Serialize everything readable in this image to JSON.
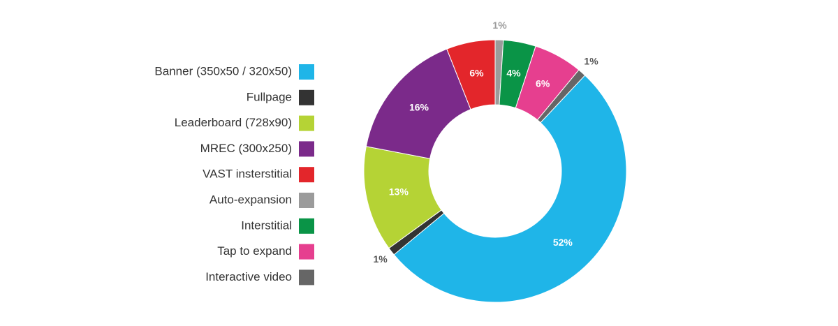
{
  "chart_data": {
    "type": "donut",
    "categories": [
      "Banner (350x50 / 320x50)",
      "Fullpage",
      "Leaderboard (728x90)",
      "MREC (300x250)",
      "VAST insterstitial",
      "Auto-expansion",
      "Interstitial",
      "Tap to expand",
      "Interactive video"
    ],
    "values": [
      52,
      1,
      13,
      16,
      6,
      1,
      4,
      6,
      1
    ],
    "value_labels": [
      "52%",
      "1%",
      "13%",
      "16%",
      "6%",
      "1%",
      "4%",
      "6%",
      "1%"
    ],
    "colors": [
      "#1fb5e8",
      "#333333",
      "#b5d335",
      "#7b2a8a",
      "#e3262b",
      "#9b9b9b",
      "#0a9447",
      "#e63f8f",
      "#666666"
    ]
  }
}
